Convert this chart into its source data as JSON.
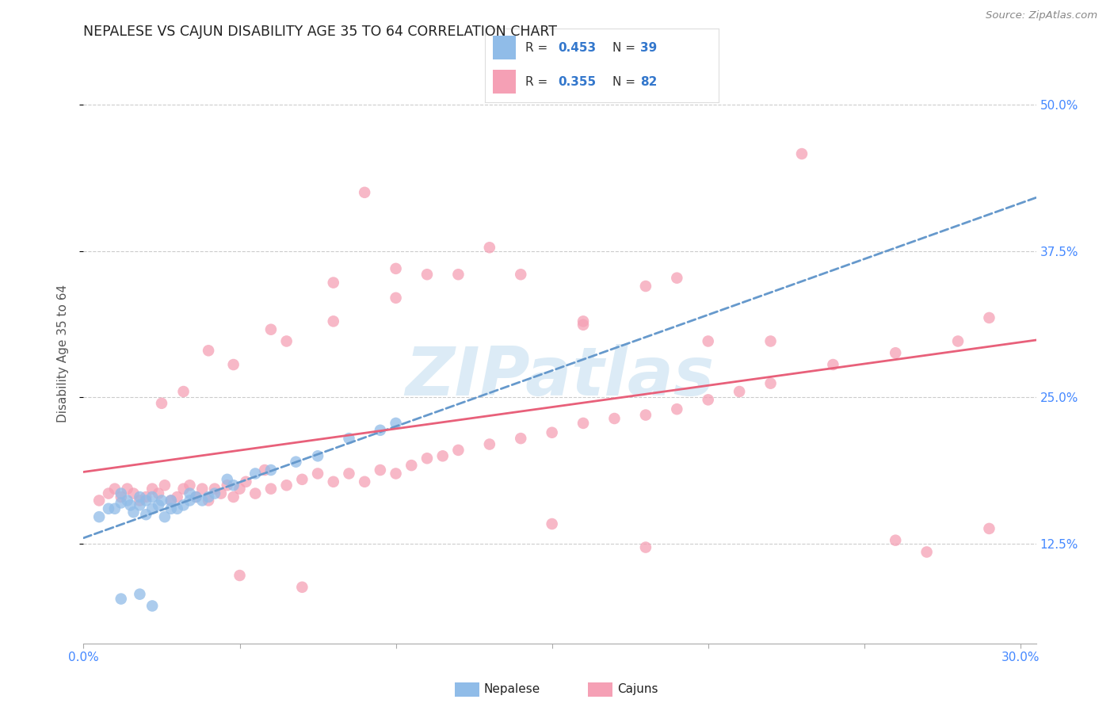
{
  "title": "NEPALESE VS CAJUN DISABILITY AGE 35 TO 64 CORRELATION CHART",
  "source_text": "Source: ZipAtlas.com",
  "ylabel": "Disability Age 35 to 64",
  "xlim": [
    0.0,
    0.305
  ],
  "ylim": [
    0.04,
    0.535
  ],
  "xtick_positions": [
    0.0,
    0.05,
    0.1,
    0.15,
    0.2,
    0.25,
    0.3
  ],
  "ytick_positions": [
    0.125,
    0.25,
    0.375,
    0.5
  ],
  "ytick_labels": [
    "12.5%",
    "25.0%",
    "37.5%",
    "50.0%"
  ],
  "background_color": "#ffffff",
  "grid_color": "#cccccc",
  "watermark_text": "ZIPatlas",
  "watermark_color": "#c5dff0",
  "nepalese_color": "#90bce8",
  "cajun_color": "#f5a0b5",
  "nepalese_line_color": "#6699cc",
  "cajun_line_color": "#e8607a",
  "R_nepalese": 0.453,
  "N_nepalese": 39,
  "R_cajun": 0.355,
  "N_cajun": 82,
  "legend_color": "#3377cc",
  "nepalese_x": [
    0.005,
    0.008,
    0.01,
    0.012,
    0.012,
    0.014,
    0.015,
    0.016,
    0.018,
    0.018,
    0.02,
    0.02,
    0.022,
    0.022,
    0.024,
    0.025,
    0.026,
    0.028,
    0.028,
    0.03,
    0.032,
    0.034,
    0.034,
    0.036,
    0.038,
    0.04,
    0.042,
    0.046,
    0.048,
    0.055,
    0.06,
    0.068,
    0.075,
    0.085,
    0.095,
    0.1,
    0.012,
    0.018,
    0.022
  ],
  "nepalese_y": [
    0.148,
    0.155,
    0.155,
    0.16,
    0.168,
    0.162,
    0.158,
    0.152,
    0.158,
    0.165,
    0.15,
    0.162,
    0.155,
    0.165,
    0.158,
    0.162,
    0.148,
    0.155,
    0.162,
    0.155,
    0.158,
    0.162,
    0.168,
    0.165,
    0.162,
    0.165,
    0.168,
    0.18,
    0.175,
    0.185,
    0.188,
    0.195,
    0.2,
    0.215,
    0.222,
    0.228,
    0.078,
    0.082,
    0.072
  ],
  "cajun_x": [
    0.005,
    0.008,
    0.01,
    0.012,
    0.014,
    0.016,
    0.018,
    0.02,
    0.022,
    0.024,
    0.026,
    0.028,
    0.03,
    0.032,
    0.034,
    0.036,
    0.038,
    0.04,
    0.042,
    0.044,
    0.046,
    0.048,
    0.05,
    0.052,
    0.055,
    0.058,
    0.06,
    0.065,
    0.07,
    0.075,
    0.08,
    0.085,
    0.09,
    0.095,
    0.1,
    0.105,
    0.11,
    0.115,
    0.12,
    0.13,
    0.14,
    0.15,
    0.16,
    0.17,
    0.18,
    0.19,
    0.2,
    0.21,
    0.22,
    0.24,
    0.26,
    0.28,
    0.29,
    0.032,
    0.048,
    0.065,
    0.08,
    0.1,
    0.12,
    0.14,
    0.16,
    0.18,
    0.2,
    0.23,
    0.025,
    0.04,
    0.06,
    0.08,
    0.1,
    0.13,
    0.16,
    0.19,
    0.22,
    0.05,
    0.07,
    0.09,
    0.11,
    0.15,
    0.18,
    0.26,
    0.27,
    0.29
  ],
  "cajun_y": [
    0.162,
    0.168,
    0.172,
    0.165,
    0.172,
    0.168,
    0.162,
    0.165,
    0.172,
    0.168,
    0.175,
    0.162,
    0.165,
    0.172,
    0.175,
    0.165,
    0.172,
    0.162,
    0.172,
    0.168,
    0.175,
    0.165,
    0.172,
    0.178,
    0.168,
    0.188,
    0.172,
    0.175,
    0.18,
    0.185,
    0.178,
    0.185,
    0.178,
    0.188,
    0.185,
    0.192,
    0.198,
    0.2,
    0.205,
    0.21,
    0.215,
    0.22,
    0.228,
    0.232,
    0.235,
    0.24,
    0.248,
    0.255,
    0.262,
    0.278,
    0.288,
    0.298,
    0.318,
    0.255,
    0.278,
    0.298,
    0.315,
    0.335,
    0.355,
    0.355,
    0.315,
    0.345,
    0.298,
    0.458,
    0.245,
    0.29,
    0.308,
    0.348,
    0.36,
    0.378,
    0.312,
    0.352,
    0.298,
    0.098,
    0.088,
    0.425,
    0.355,
    0.142,
    0.122,
    0.128,
    0.118,
    0.138
  ]
}
